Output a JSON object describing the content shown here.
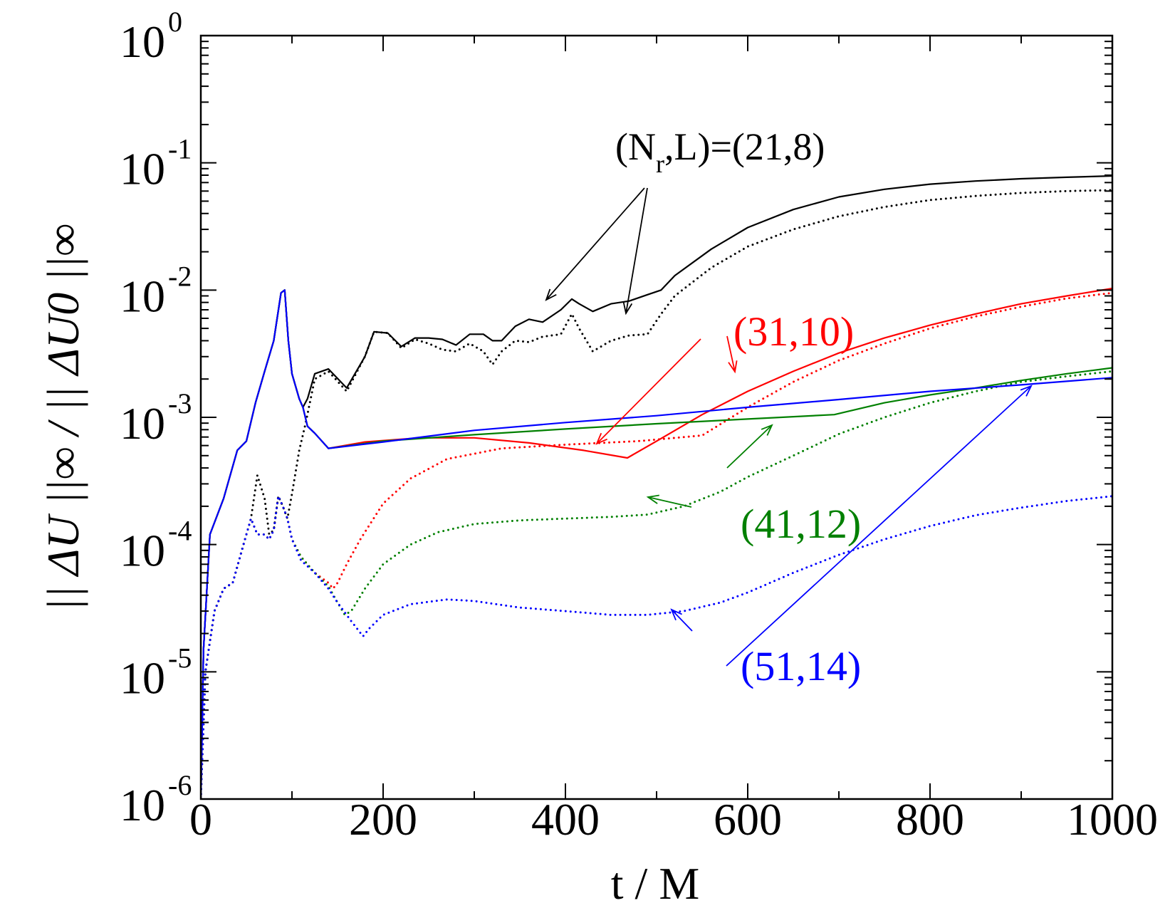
{
  "chart_data": {
    "type": "line",
    "xlabel": "t / M",
    "ylabel": "|| ΔU ||∞ / || ΔU0 ||∞",
    "xlim": [
      0,
      1000
    ],
    "ylim": [
      1e-06,
      1
    ],
    "y_scale": "log",
    "grid": false,
    "x_ticks": [
      {
        "value": 0,
        "label": "0"
      },
      {
        "value": 200,
        "label": "200"
      },
      {
        "value": 400,
        "label": "400"
      },
      {
        "value": 600,
        "label": "600"
      },
      {
        "value": 800,
        "label": "800"
      },
      {
        "value": 1000,
        "label": "1000"
      }
    ],
    "y_ticks": [
      {
        "value": 1e-06,
        "base": "10",
        "exp": "-6"
      },
      {
        "value": 1e-05,
        "base": "10",
        "exp": "-5"
      },
      {
        "value": 0.0001,
        "base": "10",
        "exp": "-4"
      },
      {
        "value": 0.001,
        "base": "10",
        "exp": "-3"
      },
      {
        "value": 0.01,
        "base": "10",
        "exp": "-2"
      },
      {
        "value": 0.1,
        "base": "10",
        "exp": "-1"
      },
      {
        "value": 1,
        "base": "10",
        "exp": "0"
      }
    ],
    "series": [
      {
        "color": "#000000",
        "style": "solid",
        "x": [
          0,
          3,
          10,
          25,
          40,
          50,
          60,
          70,
          80,
          88,
          92,
          96,
          100,
          108,
          112,
          117,
          125,
          140,
          160,
          180,
          190,
          205,
          220,
          235,
          250,
          265,
          280,
          295,
          310,
          320,
          330,
          345,
          360,
          375,
          395,
          407,
          415,
          430,
          450,
          470,
          490,
          505,
          520,
          560,
          600,
          650,
          700,
          750,
          800,
          850,
          900,
          950,
          1000
        ],
        "y": [
          1e-06,
          1.5e-05,
          0.00012,
          0.00023,
          0.00055,
          0.00065,
          0.0013,
          0.0023,
          0.004,
          0.0095,
          0.01,
          0.004,
          0.0022,
          0.0014,
          0.0012,
          0.0014,
          0.0022,
          0.0024,
          0.0017,
          0.003,
          0.0047,
          0.0046,
          0.0036,
          0.0042,
          0.0042,
          0.0041,
          0.0037,
          0.0045,
          0.0045,
          0.004,
          0.004,
          0.0052,
          0.0059,
          0.0056,
          0.007,
          0.0085,
          0.0078,
          0.0068,
          0.0078,
          0.0082,
          0.0092,
          0.01,
          0.013,
          0.021,
          0.031,
          0.043,
          0.054,
          0.062,
          0.068,
          0.072,
          0.075,
          0.077,
          0.079
        ]
      },
      {
        "color": "#000000",
        "style": "dotted",
        "x": [
          0,
          5,
          15,
          25,
          35,
          45,
          55,
          62,
          70,
          75,
          80,
          85,
          90,
          95,
          100,
          108,
          115,
          125,
          140,
          160,
          180,
          190,
          205,
          220,
          235,
          250,
          265,
          280,
          295,
          310,
          320,
          330,
          345,
          360,
          375,
          395,
          407,
          415,
          430,
          450,
          470,
          490,
          505,
          520,
          560,
          600,
          650,
          700,
          750,
          800,
          850,
          900,
          950,
          1000
        ],
        "y": [
          1e-06,
          1e-05,
          3e-05,
          4.5e-05,
          5e-05,
          9e-05,
          0.00016,
          0.00035,
          0.00023,
          0.00012,
          0.00013,
          0.00024,
          0.0002,
          0.00016,
          0.00025,
          0.00055,
          0.0009,
          0.002,
          0.0023,
          0.0016,
          0.003,
          0.0047,
          0.0046,
          0.0035,
          0.0041,
          0.0038,
          0.0034,
          0.0033,
          0.0038,
          0.0033,
          0.0026,
          0.0033,
          0.004,
          0.0039,
          0.0043,
          0.0045,
          0.0065,
          0.005,
          0.0033,
          0.004,
          0.0044,
          0.0045,
          0.0065,
          0.009,
          0.015,
          0.022,
          0.03,
          0.038,
          0.045,
          0.051,
          0.055,
          0.058,
          0.06,
          0.061
        ]
      },
      {
        "color": "#ff0000",
        "style": "solid",
        "x": [
          0,
          3,
          10,
          25,
          40,
          50,
          60,
          70,
          80,
          88,
          92,
          96,
          100,
          108,
          112,
          117,
          125,
          140,
          180,
          240,
          300,
          360,
          420,
          468,
          500,
          550,
          600,
          650,
          700,
          750,
          800,
          850,
          900,
          950,
          1000
        ],
        "y": [
          1e-06,
          1.5e-05,
          0.00012,
          0.00023,
          0.00055,
          0.00065,
          0.0013,
          0.0023,
          0.004,
          0.0095,
          0.01,
          0.004,
          0.0022,
          0.0014,
          0.0012,
          0.00085,
          0.00075,
          0.00057,
          0.00064,
          0.00069,
          0.00069,
          0.00063,
          0.00055,
          0.00048,
          0.00065,
          0.00105,
          0.0016,
          0.0023,
          0.0032,
          0.0042,
          0.0053,
          0.0065,
          0.0078,
          0.009,
          0.0103
        ]
      },
      {
        "color": "#ff0000",
        "style": "dotted",
        "x": [
          0,
          5,
          15,
          25,
          35,
          45,
          55,
          62,
          70,
          75,
          80,
          85,
          90,
          95,
          100,
          110,
          125,
          140,
          145,
          150,
          160,
          175,
          200,
          230,
          270,
          330,
          400,
          480,
          550,
          600,
          650,
          700,
          750,
          800,
          850,
          900,
          950,
          1000
        ],
        "y": [
          1e-06,
          1e-05,
          3e-05,
          4.5e-05,
          5e-05,
          9e-05,
          0.00016,
          0.00012,
          0.00012,
          0.00011,
          0.00013,
          0.00024,
          0.0002,
          0.00016,
          0.00011,
          8e-05,
          6e-05,
          5e-05,
          4.5e-05,
          5e-05,
          7e-05,
          0.00011,
          0.00021,
          0.00033,
          0.00047,
          0.00057,
          0.00061,
          0.00065,
          0.00072,
          0.0012,
          0.0019,
          0.0028,
          0.0038,
          0.005,
          0.0062,
          0.0074,
          0.0086,
          0.0095
        ]
      },
      {
        "color": "#008000",
        "style": "solid",
        "x": [
          0,
          3,
          10,
          25,
          40,
          50,
          60,
          70,
          80,
          88,
          92,
          96,
          100,
          108,
          112,
          117,
          125,
          140,
          200,
          300,
          400,
          500,
          600,
          695,
          750,
          800,
          850,
          900,
          950,
          1000
        ],
        "y": [
          1e-06,
          1.5e-05,
          0.00012,
          0.00023,
          0.00055,
          0.00065,
          0.0013,
          0.0023,
          0.004,
          0.0095,
          0.01,
          0.004,
          0.0022,
          0.0014,
          0.0012,
          0.00085,
          0.00075,
          0.00057,
          0.00065,
          0.00073,
          0.00081,
          0.00089,
          0.00097,
          0.00105,
          0.0013,
          0.0015,
          0.0017,
          0.00195,
          0.0022,
          0.00245
        ]
      },
      {
        "color": "#008000",
        "style": "dotted",
        "x": [
          0,
          5,
          15,
          25,
          35,
          45,
          55,
          62,
          70,
          75,
          80,
          85,
          90,
          95,
          100,
          110,
          125,
          140,
          150,
          158,
          165,
          180,
          200,
          230,
          260,
          300,
          350,
          400,
          450,
          490,
          530,
          570,
          600,
          650,
          700,
          750,
          800,
          850,
          900,
          950,
          1000
        ],
        "y": [
          1e-06,
          1e-05,
          3e-05,
          4.5e-05,
          5e-05,
          9e-05,
          0.00016,
          0.00012,
          0.00012,
          0.00011,
          0.00013,
          0.00024,
          0.0002,
          0.00016,
          0.00011,
          8e-05,
          6e-05,
          4.7e-05,
          3.5e-05,
          2.8e-05,
          3e-05,
          4.5e-05,
          7e-05,
          0.0001,
          0.000125,
          0.000145,
          0.000155,
          0.00016,
          0.000165,
          0.000172,
          0.0002,
          0.00026,
          0.00034,
          0.0005,
          0.00074,
          0.001,
          0.0013,
          0.0016,
          0.0019,
          0.0021,
          0.0023
        ]
      },
      {
        "color": "#0000ff",
        "style": "solid",
        "x": [
          0,
          3,
          10,
          25,
          40,
          50,
          60,
          70,
          80,
          88,
          92,
          96,
          100,
          108,
          112,
          117,
          125,
          140,
          200,
          300,
          400,
          500,
          600,
          700,
          800,
          900,
          1000
        ],
        "y": [
          1e-06,
          1.5e-05,
          0.00012,
          0.00023,
          0.00055,
          0.00065,
          0.0013,
          0.0023,
          0.004,
          0.0095,
          0.01,
          0.004,
          0.0022,
          0.0014,
          0.0012,
          0.00085,
          0.00075,
          0.00057,
          0.00064,
          0.00079,
          0.00091,
          0.00103,
          0.0012,
          0.00138,
          0.0016,
          0.0018,
          0.00205
        ]
      },
      {
        "color": "#0000ff",
        "style": "dotted",
        "x": [
          0,
          5,
          15,
          25,
          35,
          45,
          55,
          62,
          70,
          75,
          80,
          85,
          90,
          95,
          100,
          110,
          125,
          140,
          150,
          165,
          178,
          185,
          200,
          230,
          270,
          300,
          350,
          400,
          450,
          490,
          530,
          570,
          600,
          650,
          700,
          750,
          800,
          850,
          900,
          950,
          1000
        ],
        "y": [
          1e-06,
          1e-05,
          3e-05,
          4.5e-05,
          5e-05,
          9e-05,
          0.00016,
          0.00012,
          0.00012,
          0.00011,
          0.00013,
          0.00024,
          0.0002,
          0.00016,
          0.00011,
          7.5e-05,
          6e-05,
          4.5e-05,
          3.5e-05,
          2.5e-05,
          1.9e-05,
          2.2e-05,
          2.8e-05,
          3.4e-05,
          3.7e-05,
          3.6e-05,
          3.2e-05,
          3e-05,
          2.8e-05,
          2.8e-05,
          3e-05,
          3.5e-05,
          4.2e-05,
          6e-05,
          8.3e-05,
          0.00011,
          0.00014,
          0.00017,
          0.000195,
          0.00022,
          0.00024
        ]
      }
    ],
    "annotations": [
      {
        "text": "(N",
        "sub": "r",
        "text2": ",L)=(21,8)",
        "color": "#000000",
        "arrows": [
          [
            905,
            264,
            767,
            421
          ],
          [
            909,
            264,
            879,
            440
          ]
        ]
      },
      {
        "text": "(31,10)",
        "color": "#ff0000",
        "arrows": [
          [
            984,
            476,
            838,
            623
          ],
          [
            1021,
            472,
            1032,
            522
          ]
        ]
      },
      {
        "text": "(41,12)",
        "color": "#008000",
        "arrows": [
          [
            1021,
            657,
            1084,
            597
          ],
          [
            971,
            712,
            910,
            698
          ]
        ]
      },
      {
        "text": "(51,14)",
        "color": "#0000ff",
        "arrows": [
          [
            1020,
            935,
            1448,
            542
          ],
          [
            972,
            886,
            943,
            856
          ]
        ]
      }
    ]
  }
}
